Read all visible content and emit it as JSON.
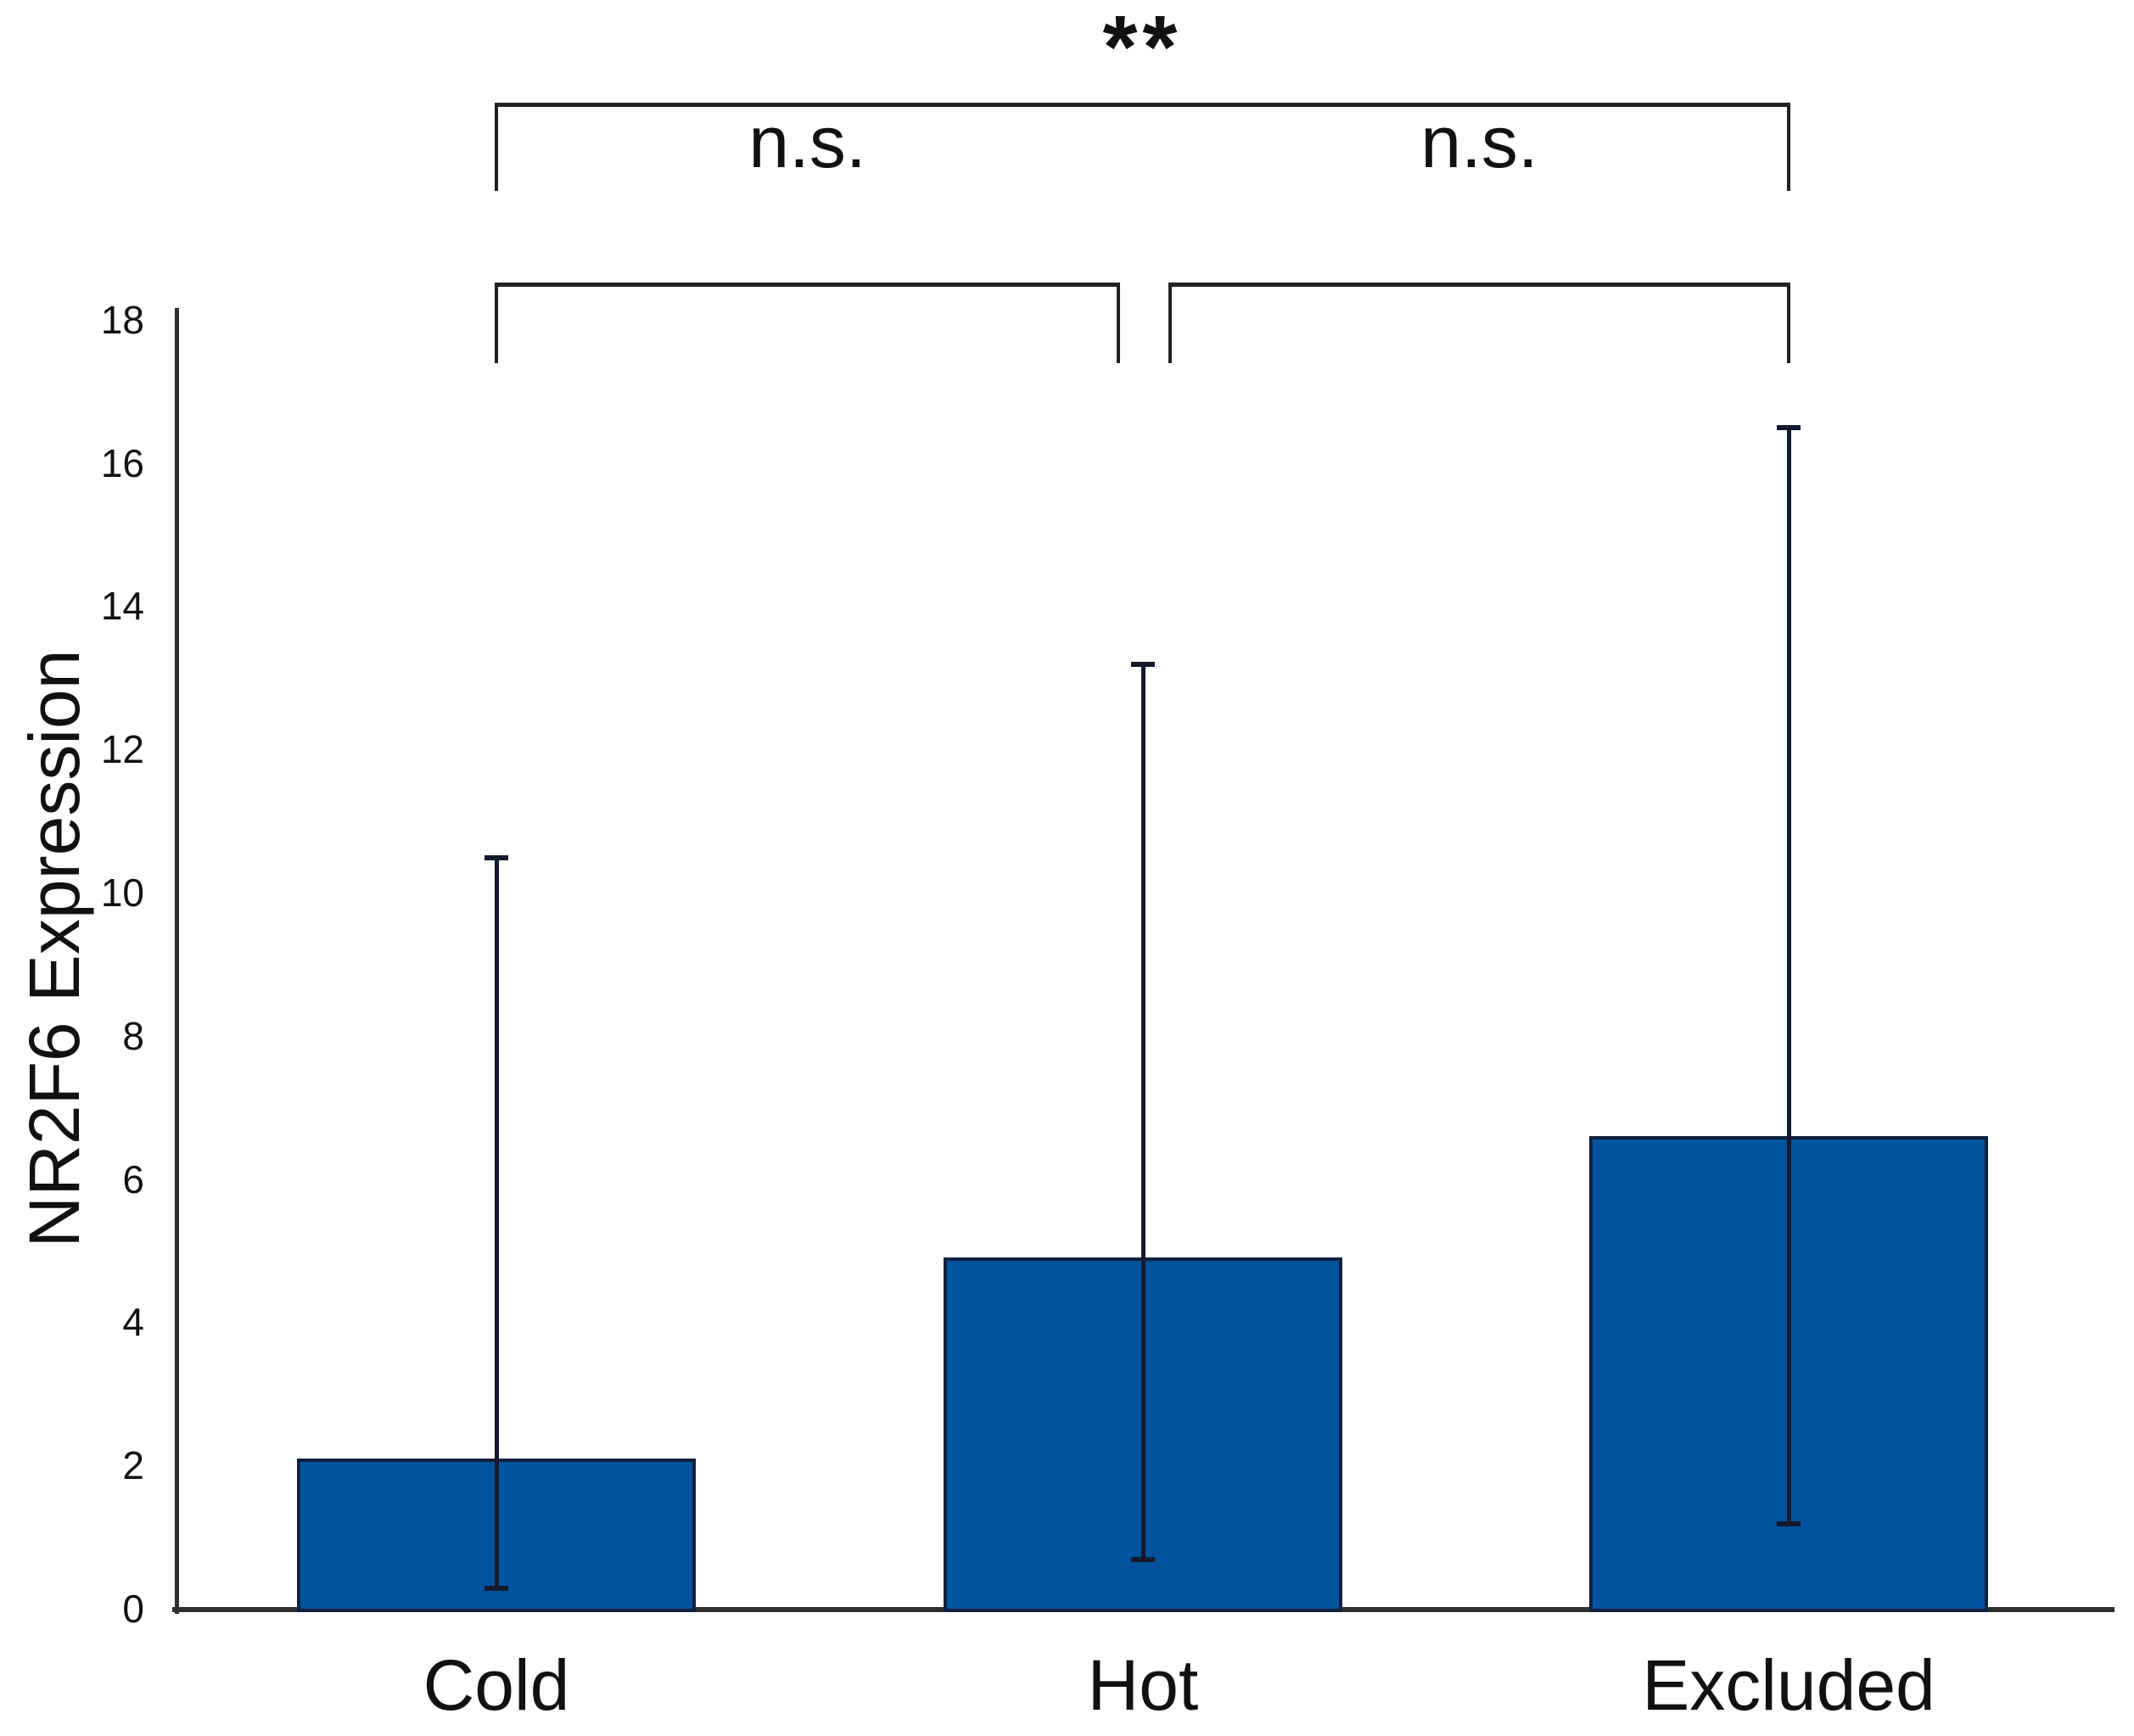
{
  "chart_data": {
    "type": "bar",
    "title": "",
    "ylabel": "NR2F6 Expression",
    "xlabel": "",
    "categories": [
      "Cold",
      "Hot",
      "Excluded"
    ],
    "values": [
      2.1,
      4.9,
      6.6
    ],
    "error_bars": {
      "lower_caps": [
        0.3,
        0.7,
        1.2
      ],
      "upper_caps": [
        10.5,
        13.2,
        16.5
      ]
    },
    "ylim": [
      0,
      18
    ],
    "y_ticks": [
      0,
      2,
      4,
      6,
      8,
      10,
      12,
      14,
      16,
      18
    ],
    "grid": false,
    "legend": null,
    "colors": {
      "bar_fill": "#02539d",
      "bar_border": "#11203f",
      "axis": "#2e2e2e",
      "error_bar": "#16192e",
      "bracket": "#222222",
      "text": "#111111"
    },
    "significance": [
      {
        "label": "**",
        "from_index": 0,
        "to_index": 2,
        "tier": "upper"
      },
      {
        "label": "n.s.",
        "from_index": 0,
        "to_index": 1,
        "tier": "lower"
      },
      {
        "label": "n.s.",
        "from_index": 1,
        "to_index": 2,
        "tier": "lower"
      }
    ]
  }
}
